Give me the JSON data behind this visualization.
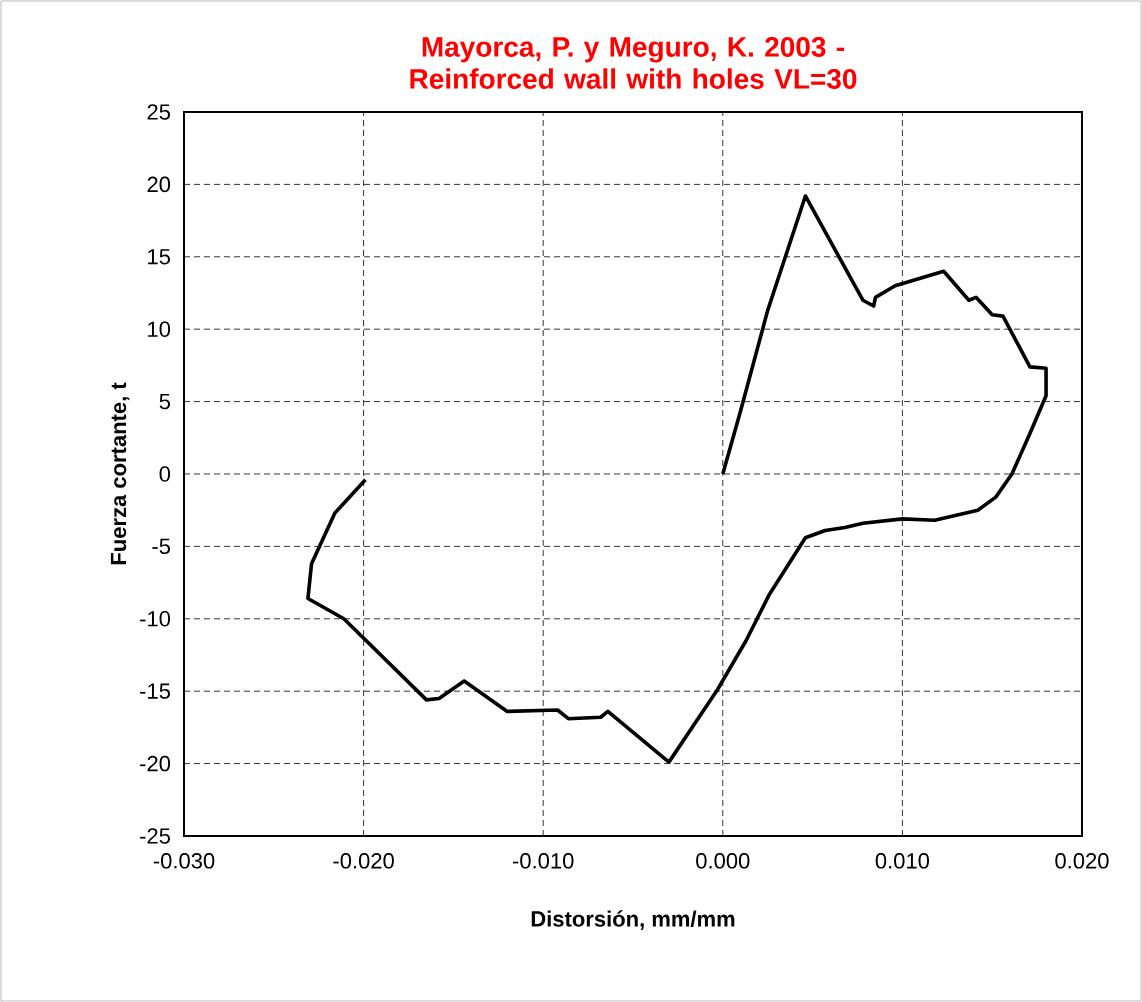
{
  "chart_data": {
    "type": "line",
    "title": "Mayorca, P. y Meguro, K. 2003 - Reinforced wall with holes VL=30",
    "xlabel": "Distorsión, mm/mm",
    "ylabel": "Fuerza cortante, t",
    "x": [
      0.0,
      0.001,
      0.0025,
      0.0046,
      0.0078,
      0.0084,
      0.0085,
      0.0096,
      0.0123,
      0.0137,
      0.0141,
      0.015,
      0.0156,
      0.0171,
      0.018,
      0.018,
      0.0171,
      0.0161,
      0.0152,
      0.0142,
      0.0118,
      0.01,
      0.0078,
      0.0068,
      0.0057,
      0.0046,
      0.0026,
      0.0013,
      -0.0003,
      -0.003,
      -0.0064,
      -0.0068,
      -0.0086,
      -0.0092,
      -0.012,
      -0.0144,
      -0.0158,
      -0.0165,
      -0.0211,
      -0.0231,
      -0.0229,
      -0.0216,
      -0.0199
    ],
    "series": [
      {
        "color": "#000000",
        "values": [
          0.0,
          4.4,
          11.3,
          19.2,
          12.0,
          11.6,
          12.2,
          13.0,
          14.0,
          12.0,
          12.2,
          11.0,
          10.9,
          7.4,
          7.3,
          5.4,
          2.8,
          0.0,
          -1.6,
          -2.5,
          -3.2,
          -3.1,
          -3.4,
          -3.7,
          -3.9,
          -4.4,
          -8.3,
          -11.5,
          -14.9,
          -19.9,
          -16.4,
          -16.8,
          -16.9,
          -16.3,
          -16.4,
          -14.3,
          -15.5,
          -15.6,
          -10.0,
          -8.6,
          -6.2,
          -2.7,
          -0.4
        ]
      }
    ],
    "xlim": [
      -0.03,
      0.02
    ],
    "ylim": [
      -25,
      25
    ],
    "xticks": [
      {
        "value": -0.03,
        "label": "-0.030"
      },
      {
        "value": -0.02,
        "label": "-0.020"
      },
      {
        "value": -0.01,
        "label": "-0.010"
      },
      {
        "value": 0,
        "label": "0.000"
      },
      {
        "value": 0.01,
        "label": "0.010"
      },
      {
        "value": 0.02,
        "label": "0.020"
      }
    ],
    "yticks": [
      -25,
      -20,
      -15,
      -10,
      -5,
      0,
      5,
      10,
      15,
      20,
      25
    ],
    "grid": true,
    "marker": "none",
    "line_style": "solid"
  }
}
